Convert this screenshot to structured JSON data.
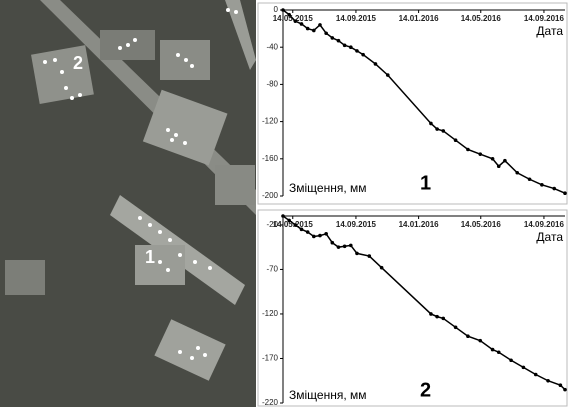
{
  "image": {
    "labels": [
      "2",
      "1"
    ]
  },
  "chart_data": [
    {
      "type": "line",
      "x_label": "Дата",
      "y_label": "Зміщення, мм",
      "annotation": "1",
      "color": "#000000",
      "xlim": [
        "2015-04-25",
        "2016-10-25"
      ],
      "xticks": [
        {
          "value": "2015-05-14",
          "label": "14.05.2015"
        },
        {
          "value": "2015-09-14",
          "label": "14.09.2015"
        },
        {
          "value": "2016-01-14",
          "label": "14.01.2016"
        },
        {
          "value": "2016-05-14",
          "label": "14.05.2016"
        },
        {
          "value": "2016-09-14",
          "label": "14.09.2016"
        }
      ],
      "ylim": [
        -200,
        0
      ],
      "yticks": [
        0,
        -40,
        -80,
        -120,
        -160,
        -200
      ],
      "x": [
        "2015-04-25",
        "2015-05-07",
        "2015-05-19",
        "2015-05-31",
        "2015-06-12",
        "2015-06-24",
        "2015-07-06",
        "2015-07-18",
        "2015-07-30",
        "2015-08-11",
        "2015-08-23",
        "2015-09-04",
        "2015-09-16",
        "2015-09-28",
        "2015-10-22",
        "2015-11-15",
        "2016-02-07",
        "2016-02-19",
        "2016-03-02",
        "2016-03-26",
        "2016-04-19",
        "2016-05-13",
        "2016-06-06",
        "2016-06-18",
        "2016-06-30",
        "2016-07-24",
        "2016-08-17",
        "2016-09-10",
        "2016-10-04",
        "2016-10-25"
      ],
      "values": [
        0,
        -5,
        -12,
        -15,
        -20,
        -22,
        -16,
        -25,
        -30,
        -33,
        -38,
        -40,
        -44,
        -48,
        -58,
        -70,
        -122,
        -128,
        -130,
        -140,
        -150,
        -155,
        -160,
        -168,
        -162,
        -175,
        -182,
        -188,
        -192,
        -197
      ]
    },
    {
      "type": "line",
      "x_label": "Дата",
      "y_label": "Зміщення, мм",
      "annotation": "2",
      "color": "#000000",
      "xlim": [
        "2015-04-25",
        "2016-10-25"
      ],
      "xticks": [
        {
          "value": "2015-05-14",
          "label": "14.05.2015"
        },
        {
          "value": "2015-09-14",
          "label": "14.09.2015"
        },
        {
          "value": "2016-01-14",
          "label": "14.01.2016"
        },
        {
          "value": "2016-05-14",
          "label": "14.05.2016"
        },
        {
          "value": "2016-09-14",
          "label": "14.09.2016"
        }
      ],
      "ylim": [
        -220,
        -10
      ],
      "yticks": [
        -20,
        -70,
        -120,
        -170,
        -220
      ],
      "x": [
        "2015-04-25",
        "2015-05-07",
        "2015-05-19",
        "2015-05-31",
        "2015-06-12",
        "2015-06-24",
        "2015-07-06",
        "2015-07-18",
        "2015-07-30",
        "2015-08-11",
        "2015-08-23",
        "2015-09-04",
        "2015-09-16",
        "2015-10-10",
        "2015-11-03",
        "2016-02-07",
        "2016-02-19",
        "2016-03-02",
        "2016-03-26",
        "2016-04-19",
        "2016-05-13",
        "2016-06-06",
        "2016-06-18",
        "2016-07-12",
        "2016-08-05",
        "2016-08-29",
        "2016-09-22",
        "2016-10-16",
        "2016-10-25"
      ],
      "values": [
        -10,
        -15,
        -20,
        -25,
        -28,
        -33,
        -32,
        -30,
        -40,
        -45,
        -44,
        -43,
        -52,
        -55,
        -68,
        -120,
        -123,
        -125,
        -135,
        -145,
        -150,
        -160,
        -163,
        -172,
        -180,
        -188,
        -195,
        -200,
        -205
      ]
    }
  ]
}
